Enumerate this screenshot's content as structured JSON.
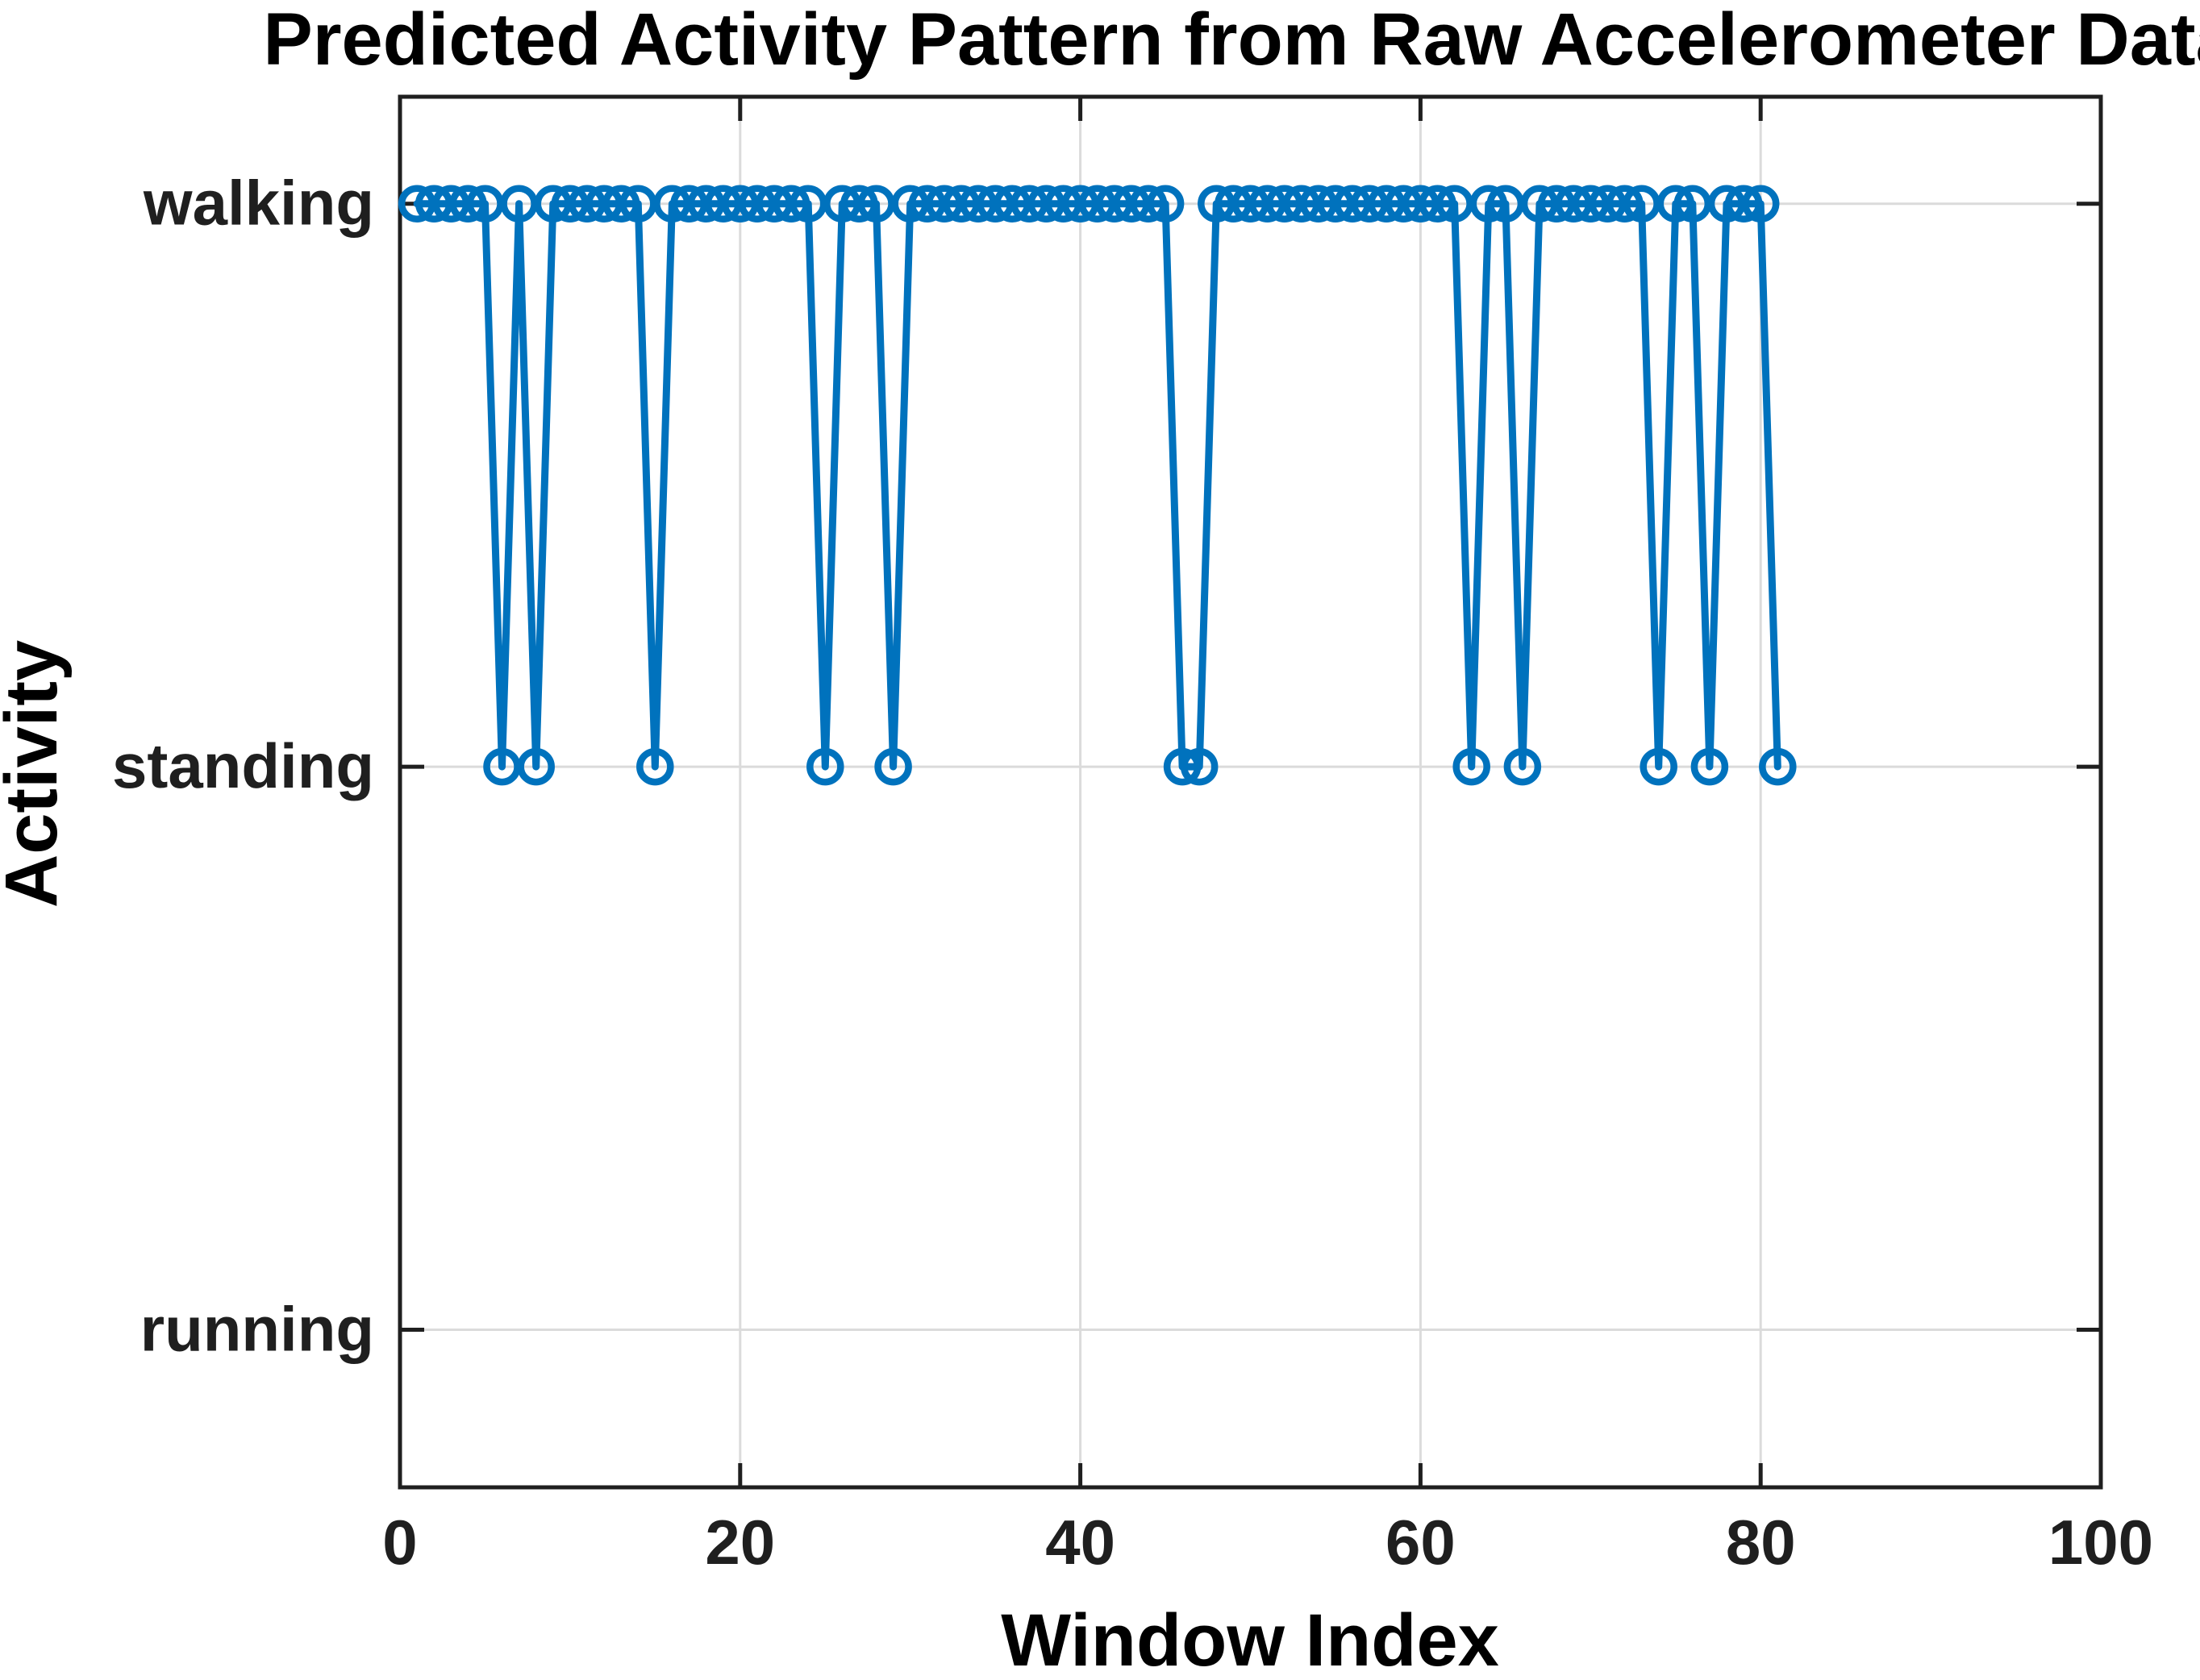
{
  "chart_data": {
    "type": "line",
    "title": "Predicted Activity Pattern from Raw Accelerometer Data",
    "xlabel": "Window Index",
    "ylabel": "Activity",
    "xlim": [
      0,
      100
    ],
    "x_ticks": [
      0,
      20,
      40,
      60,
      80,
      100
    ],
    "y_categories_bottom_to_top": [
      "running",
      "standing",
      "walking"
    ],
    "ylim_category_units": [
      0.72,
      3.19
    ],
    "grid": true,
    "legend": "none",
    "line_color": "#0072BD",
    "marker": "open-circle",
    "marker_fill": "none",
    "grid_color": "#dbdbdb",
    "axis_color": "#1f1f1f",
    "series_name": "predicted_activity",
    "points": [
      [
        1,
        "walking"
      ],
      [
        2,
        "walking"
      ],
      [
        3,
        "walking"
      ],
      [
        4,
        "walking"
      ],
      [
        5,
        "walking"
      ],
      [
        6,
        "standing"
      ],
      [
        7,
        "walking"
      ],
      [
        8,
        "standing"
      ],
      [
        9,
        "walking"
      ],
      [
        10,
        "walking"
      ],
      [
        11,
        "walking"
      ],
      [
        12,
        "walking"
      ],
      [
        13,
        "walking"
      ],
      [
        14,
        "walking"
      ],
      [
        15,
        "standing"
      ],
      [
        16,
        "walking"
      ],
      [
        17,
        "walking"
      ],
      [
        18,
        "walking"
      ],
      [
        19,
        "walking"
      ],
      [
        20,
        "walking"
      ],
      [
        21,
        "walking"
      ],
      [
        22,
        "walking"
      ],
      [
        23,
        "walking"
      ],
      [
        24,
        "walking"
      ],
      [
        25,
        "standing"
      ],
      [
        26,
        "walking"
      ],
      [
        27,
        "walking"
      ],
      [
        28,
        "walking"
      ],
      [
        29,
        "standing"
      ],
      [
        30,
        "walking"
      ],
      [
        31,
        "walking"
      ],
      [
        32,
        "walking"
      ],
      [
        33,
        "walking"
      ],
      [
        34,
        "walking"
      ],
      [
        35,
        "walking"
      ],
      [
        36,
        "walking"
      ],
      [
        37,
        "walking"
      ],
      [
        38,
        "walking"
      ],
      [
        39,
        "walking"
      ],
      [
        40,
        "walking"
      ],
      [
        41,
        "walking"
      ],
      [
        42,
        "walking"
      ],
      [
        43,
        "walking"
      ],
      [
        44,
        "walking"
      ],
      [
        45,
        "walking"
      ],
      [
        46,
        "standing"
      ],
      [
        47,
        "standing"
      ],
      [
        48,
        "walking"
      ],
      [
        49,
        "walking"
      ],
      [
        50,
        "walking"
      ],
      [
        51,
        "walking"
      ],
      [
        52,
        "walking"
      ],
      [
        53,
        "walking"
      ],
      [
        54,
        "walking"
      ],
      [
        55,
        "walking"
      ],
      [
        56,
        "walking"
      ],
      [
        57,
        "walking"
      ],
      [
        58,
        "walking"
      ],
      [
        59,
        "walking"
      ],
      [
        60,
        "walking"
      ],
      [
        61,
        "walking"
      ],
      [
        62,
        "walking"
      ],
      [
        63,
        "standing"
      ],
      [
        64,
        "walking"
      ],
      [
        65,
        "walking"
      ],
      [
        66,
        "standing"
      ],
      [
        67,
        "walking"
      ],
      [
        68,
        "walking"
      ],
      [
        69,
        "walking"
      ],
      [
        70,
        "walking"
      ],
      [
        71,
        "walking"
      ],
      [
        72,
        "walking"
      ],
      [
        73,
        "walking"
      ],
      [
        74,
        "standing"
      ],
      [
        75,
        "walking"
      ],
      [
        76,
        "walking"
      ],
      [
        77,
        "standing"
      ],
      [
        78,
        "walking"
      ],
      [
        79,
        "walking"
      ],
      [
        80,
        "walking"
      ],
      [
        81,
        "standing"
      ]
    ]
  }
}
